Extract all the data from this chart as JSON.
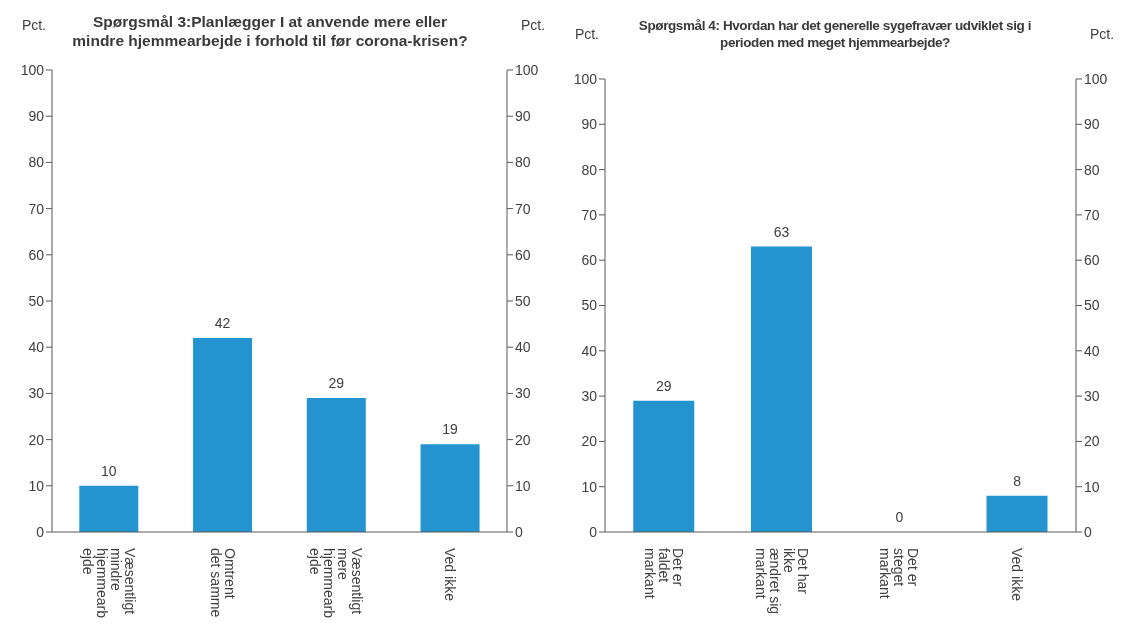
{
  "chart_data": [
    {
      "type": "bar",
      "title": "Spørgsmål 3:Planlægger I at anvende mere eller mindre hjemmearbejde  i forhold til før corona-krisen?",
      "ylabel": "Pct.",
      "y2label": "Pct.",
      "categories": [
        "Væsentligt mindre hjemmearbejde",
        "Omtrent det samme",
        "Væsentligt mere hjemmearbejde",
        "Ved ikke"
      ],
      "values": [
        10,
        42,
        29,
        19
      ],
      "color": "#2394cf",
      "ylim": [
        0,
        100
      ],
      "yticks": [
        0,
        10,
        20,
        30,
        40,
        50,
        60,
        70,
        80,
        90,
        100
      ],
      "y2lim": [
        0,
        100
      ],
      "y2ticks": [
        0,
        10,
        20,
        30,
        40,
        50,
        60,
        70,
        80,
        90,
        100
      ],
      "data_labels": true
    },
    {
      "type": "bar",
      "title": "Spørgsmål 4: Hvordan har det generelle sygefravær udviklet sig i perioden med meget hjemmearbejde?",
      "ylabel": "Pct.",
      "y2label": "Pct.",
      "categories": [
        "Det er faldet markant",
        "Det har ikke ændret sig markant",
        "Det er steget markant",
        "Ved ikke"
      ],
      "values": [
        29,
        63,
        0,
        8
      ],
      "color": "#2394cf",
      "ylim": [
        0,
        100
      ],
      "yticks": [
        0,
        10,
        20,
        30,
        40,
        50,
        60,
        70,
        80,
        90,
        100
      ],
      "y2lim": [
        0,
        100
      ],
      "y2ticks": [
        0,
        10,
        20,
        30,
        40,
        50,
        60,
        70,
        80,
        90,
        100
      ],
      "data_labels": true
    }
  ]
}
